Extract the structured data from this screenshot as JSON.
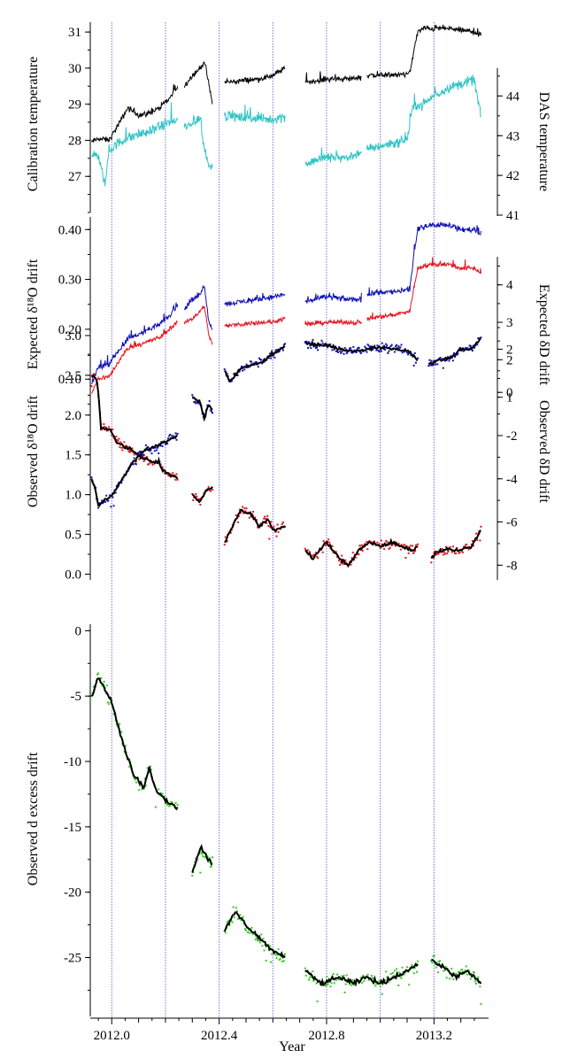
{
  "figure": {
    "xlabel": "Year",
    "xlim": [
      2011.92,
      2013.39
    ],
    "xticks": [
      2012.0,
      2012.4,
      2012.8,
      2013.2
    ],
    "xtick_labels": [
      "2012.0",
      "2012.4",
      "2012.8",
      "2013.2"
    ],
    "vlines": [
      2012.0,
      2012.2,
      2012.4,
      2012.6,
      2012.8,
      2013.0,
      2013.2
    ],
    "vline_color": "#6f6fe0"
  },
  "colors": {
    "black": "#000000",
    "cyan": "#2ec4c4",
    "blue": "#1010b4",
    "red": "#e8141e",
    "green": "#33cc22"
  },
  "chart_data": [
    {
      "type": "line",
      "panel": "temperature",
      "ylabel_left": "Calibration temperature",
      "ylabel_right": "DAS temperature",
      "ylim_left": [
        26.0,
        31.2
      ],
      "yticks_left": [
        27,
        28,
        29,
        30,
        31
      ],
      "ylim_right": [
        41.0,
        44.7
      ],
      "yticks_right": [
        41,
        42,
        43,
        44
      ],
      "series": [
        {
          "color": "black",
          "axis": "left",
          "noise": 0.12,
          "x": [
            2011.925,
            2011.95,
            2011.99,
            2012.03,
            2012.06,
            2012.1,
            2012.14,
            2012.18,
            2012.22,
            2012.245,
            null,
            2012.27,
            2012.3,
            2012.33,
            2012.345,
            2012.36,
            2012.375,
            null,
            2012.42,
            2012.48,
            2012.55,
            2012.6,
            2012.645,
            null,
            2012.72,
            2012.8,
            2012.88,
            2012.93,
            null,
            2012.95,
            2013.0,
            2013.05,
            2013.11,
            2013.125,
            2013.14,
            2013.16,
            2013.2,
            2013.25,
            2013.3,
            2013.35,
            2013.375
          ],
          "y": [
            27.95,
            28.05,
            28.0,
            28.5,
            28.9,
            28.7,
            28.75,
            28.9,
            29.2,
            29.5,
            null,
            29.5,
            29.8,
            30.0,
            30.2,
            29.6,
            29.0,
            null,
            29.6,
            29.65,
            29.7,
            29.8,
            30.0,
            null,
            29.6,
            29.7,
            29.7,
            29.75,
            null,
            29.8,
            29.8,
            29.8,
            29.85,
            30.5,
            31.0,
            31.1,
            31.1,
            31.1,
            31.05,
            31.0,
            30.9
          ]
        },
        {
          "color": "cyan",
          "axis": "right",
          "noise": 0.18,
          "x": [
            2011.925,
            2011.94,
            2011.96,
            2011.975,
            2011.99,
            2012.02,
            2012.08,
            2012.14,
            2012.2,
            2012.245,
            null,
            2012.27,
            2012.31,
            2012.33,
            2012.34,
            2012.36,
            2012.375,
            null,
            2012.42,
            2012.5,
            2012.6,
            2012.645,
            null,
            2012.72,
            2012.8,
            2012.88,
            2012.93,
            null,
            2012.95,
            2013.0,
            2013.05,
            2013.1,
            2013.12,
            2013.16,
            2013.2,
            2013.25,
            2013.3,
            2013.35,
            2013.375
          ],
          "y": [
            42.5,
            42.6,
            42.2,
            41.8,
            42.6,
            42.8,
            43.0,
            43.1,
            43.3,
            43.4,
            null,
            43.2,
            43.3,
            43.5,
            42.8,
            42.3,
            42.2,
            null,
            43.5,
            43.45,
            43.4,
            43.5,
            null,
            42.3,
            42.45,
            42.45,
            42.6,
            null,
            42.65,
            42.75,
            42.8,
            42.9,
            43.7,
            43.8,
            44.0,
            44.2,
            44.3,
            44.4,
            43.5
          ]
        }
      ]
    },
    {
      "type": "line",
      "panel": "expected-drift",
      "ylabel_left": "Expected δ¹⁸O drift",
      "ylabel_right": "Expected δD drift",
      "ylim_left": [
        0.04,
        0.42
      ],
      "yticks_left": [
        0.1,
        0.2,
        0.3,
        0.4
      ],
      "ytick_labels_left": [
        "0.10",
        "0.20",
        "0.30",
        "0.40"
      ],
      "ylim_right": [
        0.85,
        4.75
      ],
      "yticks_right": [
        1,
        2,
        3,
        4
      ],
      "series": [
        {
          "color": "blue",
          "axis": "left",
          "noise": 0.008,
          "x": [
            2011.925,
            2011.95,
            2011.99,
            2012.03,
            2012.06,
            2012.1,
            2012.14,
            2012.18,
            2012.22,
            2012.245,
            null,
            2012.27,
            2012.3,
            2012.33,
            2012.345,
            2012.36,
            2012.375,
            null,
            2012.42,
            2012.48,
            2012.55,
            2012.6,
            2012.645,
            null,
            2012.72,
            2012.8,
            2012.88,
            2012.93,
            null,
            2012.95,
            2013.0,
            2013.05,
            2013.11,
            2013.125,
            2013.14,
            2013.16,
            2013.2,
            2013.25,
            2013.3,
            2013.35,
            2013.375
          ],
          "y": [
            0.09,
            0.125,
            0.13,
            0.16,
            0.18,
            0.19,
            0.2,
            0.21,
            0.23,
            0.25,
            null,
            0.24,
            0.26,
            0.27,
            0.29,
            0.22,
            0.2,
            null,
            0.25,
            0.255,
            0.26,
            0.265,
            0.27,
            null,
            0.255,
            0.265,
            0.26,
            0.26,
            null,
            0.27,
            0.275,
            0.275,
            0.28,
            0.35,
            0.4,
            0.405,
            0.41,
            0.41,
            0.4,
            0.4,
            0.39
          ]
        },
        {
          "color": "red",
          "axis": "right",
          "noise": 0.09,
          "x": [
            2011.925,
            2011.95,
            2011.99,
            2012.03,
            2012.06,
            2012.1,
            2012.14,
            2012.18,
            2012.22,
            2012.245,
            null,
            2012.27,
            2012.3,
            2012.33,
            2012.345,
            2012.36,
            2012.375,
            null,
            2012.42,
            2012.48,
            2012.55,
            2012.6,
            2012.645,
            null,
            2012.72,
            2012.8,
            2012.88,
            2012.93,
            null,
            2012.95,
            2013.0,
            2013.05,
            2013.11,
            2013.125,
            2013.14,
            2013.16,
            2013.2,
            2013.25,
            2013.3,
            2013.35,
            2013.375
          ],
          "y": [
            1.1,
            1.5,
            1.55,
            2.0,
            2.3,
            2.4,
            2.5,
            2.6,
            2.85,
            3.0,
            null,
            3.0,
            3.1,
            3.3,
            3.45,
            2.7,
            2.4,
            null,
            2.9,
            2.95,
            3.0,
            3.0,
            3.1,
            null,
            2.95,
            3.0,
            3.0,
            3.0,
            null,
            3.1,
            3.15,
            3.2,
            3.3,
            3.9,
            4.45,
            4.5,
            4.55,
            4.55,
            4.45,
            4.45,
            4.3
          ]
        }
      ]
    },
    {
      "type": "scatter",
      "panel": "observed-drift",
      "ylabel_left": "Observed δ¹⁸O drift",
      "ylabel_right": "Observed δD drift",
      "ylim_left": [
        -0.05,
        3.1
      ],
      "yticks_left": [
        0.0,
        0.5,
        1.0,
        1.5,
        2.0,
        2.5,
        3.0
      ],
      "ytick_labels_left": [
        "0.0",
        "0.5",
        "1.0",
        "1.5",
        "2.0",
        "2.5",
        "3.0"
      ],
      "ylim_right": [
        -8.6,
        3.0
      ],
      "yticks_right": [
        -8,
        -6,
        -4,
        -2,
        0,
        2
      ],
      "ytick_labels_right": [
        "-8",
        "-6",
        "-4",
        "-2",
        "0",
        "2"
      ],
      "series": [
        {
          "color": "red",
          "axis": "left",
          "noise": 0.09,
          "smooth": true,
          "x": [
            2011.925,
            2011.94,
            2011.95,
            2011.96,
            2012.0,
            2012.02,
            2012.05,
            2012.08,
            2012.12,
            2012.16,
            2012.175,
            2012.19,
            2012.22,
            2012.245,
            null,
            2012.3,
            2012.33,
            2012.35,
            2012.375,
            null,
            2012.42,
            2012.45,
            2012.48,
            2012.52,
            2012.55,
            2012.58,
            2012.6,
            2012.645,
            null,
            2012.72,
            2012.75,
            2012.8,
            2012.85,
            2012.88,
            2012.92,
            2012.96,
            2013.0,
            2013.04,
            2013.08,
            2013.12,
            2013.14,
            null,
            2013.19,
            2013.22,
            2013.26,
            2013.3,
            2013.34,
            2013.375
          ],
          "y": [
            2.5,
            2.48,
            2.3,
            1.85,
            1.8,
            1.65,
            1.6,
            1.55,
            1.45,
            1.4,
            1.42,
            1.3,
            1.25,
            1.2,
            null,
            1.0,
            0.9,
            1.05,
            1.1,
            null,
            0.4,
            0.6,
            0.8,
            0.75,
            0.6,
            0.7,
            0.55,
            0.6,
            null,
            0.3,
            0.2,
            0.4,
            0.2,
            0.1,
            0.3,
            0.4,
            0.35,
            0.4,
            0.35,
            0.3,
            0.35,
            null,
            0.2,
            0.3,
            0.3,
            0.3,
            0.35,
            0.55
          ]
        },
        {
          "color": "blue",
          "axis": "right",
          "noise": 0.32,
          "smooth": true,
          "x": [
            2011.925,
            2011.94,
            2011.95,
            2011.97,
            2012.0,
            2012.04,
            2012.08,
            2012.12,
            2012.16,
            2012.2,
            2012.245,
            null,
            2012.3,
            2012.33,
            2012.345,
            2012.36,
            2012.375,
            null,
            2012.42,
            2012.44,
            2012.48,
            2012.52,
            2012.56,
            2012.6,
            2012.645,
            null,
            2012.72,
            2012.76,
            2012.8,
            2012.85,
            2012.9,
            2012.95,
            2013.0,
            2013.05,
            2013.1,
            2013.14,
            null,
            2013.18,
            2013.22,
            2013.26,
            2013.3,
            2013.34,
            2013.375
          ],
          "y": [
            -4.0,
            -4.5,
            -5.3,
            -5.0,
            -4.8,
            -4.0,
            -3.2,
            -2.7,
            -2.5,
            -2.3,
            -2.0,
            null,
            -0.2,
            -0.5,
            -1.2,
            -0.6,
            -0.8,
            null,
            1.0,
            0.5,
            1.1,
            1.3,
            1.4,
            1.8,
            2.1,
            null,
            2.3,
            2.2,
            2.2,
            2.0,
            1.9,
            2.0,
            2.1,
            2.0,
            1.95,
            1.5,
            null,
            1.3,
            1.5,
            1.6,
            2.0,
            2.0,
            2.5
          ]
        }
      ]
    },
    {
      "type": "scatter",
      "panel": "d-excess",
      "ylabel_left": "Observed d excess drift",
      "ylim_left": [
        -29.5,
        0.5
      ],
      "yticks_left": [
        0,
        -5,
        -10,
        -15,
        -20,
        -25
      ],
      "ytick_labels_left": [
        "0",
        "-5",
        "-10",
        "-15",
        "-20",
        "-25"
      ],
      "series": [
        {
          "color": "green",
          "axis": "left",
          "noise": 0.75,
          "smooth": true,
          "x": [
            2011.925,
            2011.95,
            2012.0,
            2012.04,
            2012.08,
            2012.12,
            2012.14,
            2012.16,
            2012.2,
            2012.245,
            null,
            2012.3,
            2012.33,
            2012.35,
            2012.375,
            null,
            2012.42,
            2012.46,
            2012.5,
            2012.55,
            2012.6,
            2012.645,
            null,
            2012.72,
            2012.78,
            2012.85,
            2012.9,
            2012.95,
            2013.0,
            2013.05,
            2013.1,
            2013.14,
            null,
            2013.19,
            2013.24,
            2013.28,
            2013.32,
            2013.35,
            2013.375
          ],
          "y": [
            -5.0,
            -3.5,
            -5.5,
            -8.5,
            -11.0,
            -12.0,
            -10.5,
            -12.0,
            -13.0,
            -13.5,
            null,
            -18.5,
            -16.5,
            -17.2,
            -17.8,
            null,
            -23.0,
            -21.5,
            -22.5,
            -23.5,
            -24.5,
            -25.0,
            null,
            -26.0,
            -27.0,
            -26.5,
            -27.0,
            -26.5,
            -27.0,
            -26.5,
            -26.0,
            -25.5,
            null,
            -25.2,
            -25.8,
            -26.5,
            -26.0,
            -26.5,
            -27.0
          ]
        }
      ]
    }
  ]
}
